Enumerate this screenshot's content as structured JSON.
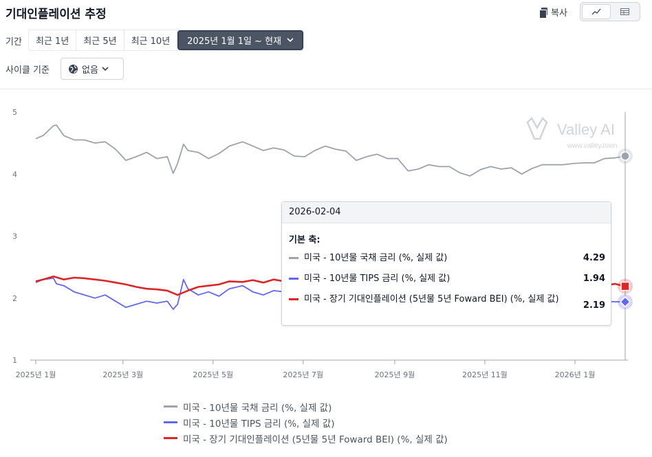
{
  "header": {
    "title": "기대인플레이션 추정",
    "copy_label": "복사"
  },
  "controls": {
    "period_label": "기간",
    "period_options": [
      "최근 1년",
      "최근 5년",
      "최근 10년"
    ],
    "period_selected": "2025년 1월 1일 ~ 현재",
    "cycle_label": "사이클 기준",
    "cycle_value": "없음"
  },
  "watermark": {
    "brand": "Valley AI",
    "url": "www.valley.town"
  },
  "tooltip": {
    "date": "2026-02-04",
    "axis_label": "기본 축:",
    "rows": [
      {
        "name": "미국 - 10년물 국채 금리 (%, 실제 값)",
        "value": "4.29"
      },
      {
        "name": "미국 - 10년물 TIPS 금리 (%, 실제 값)",
        "value": "1.94"
      },
      {
        "name": "미국 - 장기 기대인플레이션 (5년물 5년 Foward BEI) (%, 실제 값)",
        "value": "2.19"
      }
    ]
  },
  "chart_data": {
    "type": "line",
    "x_ticks": [
      "2025년 1월",
      "2025년 3월",
      "2025년 5월",
      "2025년 7월",
      "2025년 9월",
      "2025년 11월",
      "2026년 1월"
    ],
    "x_tick_dates": [
      "2025-01-01",
      "2025-03-01",
      "2025-05-01",
      "2025-07-01",
      "2025-09-01",
      "2025-11-01",
      "2026-01-01"
    ],
    "x_range": [
      "2025-01-01",
      "2026-02-04"
    ],
    "ylim": [
      1,
      5
    ],
    "y_ticks": [
      1,
      2,
      3,
      4,
      5
    ],
    "grid": false,
    "legend_position": "bottom",
    "hover_date": "2026-02-04",
    "series": [
      {
        "name": "미국 - 10년물 국채 금리 (%, 실제 값)",
        "color": "#9ca3af",
        "marker": "circle",
        "dates": [
          "2025-01-01",
          "2025-01-06",
          "2025-01-13",
          "2025-01-15",
          "2025-01-20",
          "2025-01-27",
          "2025-02-03",
          "2025-02-10",
          "2025-02-17",
          "2025-02-24",
          "2025-03-03",
          "2025-03-10",
          "2025-03-17",
          "2025-03-24",
          "2025-03-31",
          "2025-04-04",
          "2025-04-07",
          "2025-04-11",
          "2025-04-14",
          "2025-04-21",
          "2025-04-28",
          "2025-05-05",
          "2025-05-12",
          "2025-05-21",
          "2025-05-28",
          "2025-06-04",
          "2025-06-11",
          "2025-06-18",
          "2025-06-25",
          "2025-07-02",
          "2025-07-09",
          "2025-07-16",
          "2025-07-23",
          "2025-07-30",
          "2025-08-06",
          "2025-08-13",
          "2025-08-20",
          "2025-08-27",
          "2025-09-03",
          "2025-09-10",
          "2025-09-17",
          "2025-09-24",
          "2025-10-01",
          "2025-10-08",
          "2025-10-15",
          "2025-10-22",
          "2025-10-29",
          "2025-11-05",
          "2025-11-12",
          "2025-11-19",
          "2025-11-26",
          "2025-12-03",
          "2025-12-10",
          "2025-12-17",
          "2025-12-24",
          "2025-12-31",
          "2026-01-07",
          "2026-01-14",
          "2026-01-21",
          "2026-01-28",
          "2026-02-04"
        ],
        "values": [
          4.57,
          4.62,
          4.78,
          4.79,
          4.62,
          4.55,
          4.55,
          4.5,
          4.52,
          4.4,
          4.22,
          4.28,
          4.35,
          4.25,
          4.28,
          4.01,
          4.17,
          4.48,
          4.38,
          4.35,
          4.25,
          4.33,
          4.45,
          4.52,
          4.45,
          4.38,
          4.42,
          4.39,
          4.29,
          4.28,
          4.38,
          4.45,
          4.4,
          4.37,
          4.22,
          4.28,
          4.32,
          4.25,
          4.25,
          4.05,
          4.08,
          4.15,
          4.12,
          4.12,
          4.02,
          3.97,
          4.07,
          4.12,
          4.08,
          4.1,
          4.0,
          4.09,
          4.15,
          4.15,
          4.15,
          4.17,
          4.18,
          4.18,
          4.25,
          4.26,
          4.29
        ]
      },
      {
        "name": "미국 - 10년물 TIPS 금리 (%, 실제 값)",
        "color": "#6366f1",
        "marker": "diamond",
        "dates": [
          "2025-01-01",
          "2025-01-06",
          "2025-01-13",
          "2025-01-15",
          "2025-01-20",
          "2025-01-27",
          "2025-02-03",
          "2025-02-10",
          "2025-02-17",
          "2025-02-24",
          "2025-03-03",
          "2025-03-10",
          "2025-03-17",
          "2025-03-24",
          "2025-03-31",
          "2025-04-04",
          "2025-04-07",
          "2025-04-11",
          "2025-04-14",
          "2025-04-21",
          "2025-04-28",
          "2025-05-05",
          "2025-05-12",
          "2025-05-21",
          "2025-05-28",
          "2025-06-04",
          "2025-06-11",
          "2025-06-18",
          "2025-06-25",
          "2025-07-02",
          "2026-01-28",
          "2026-02-04"
        ],
        "values": [
          2.25,
          2.3,
          2.32,
          2.23,
          2.2,
          2.1,
          2.05,
          2.0,
          2.05,
          1.95,
          1.85,
          1.9,
          1.95,
          1.92,
          1.95,
          1.82,
          1.9,
          2.3,
          2.15,
          2.05,
          2.1,
          2.03,
          2.15,
          2.2,
          2.1,
          2.05,
          2.12,
          2.1,
          2.05,
          2.12,
          1.94,
          1.94
        ]
      },
      {
        "name": "미국 - 장기 기대인플레이션 (5년물 5년 Foward BEI) (%, 실제 값)",
        "color": "#dc2626",
        "marker": "square",
        "dates": [
          "2025-01-01",
          "2025-01-06",
          "2025-01-13",
          "2025-01-20",
          "2025-01-27",
          "2025-02-03",
          "2025-02-10",
          "2025-02-17",
          "2025-02-24",
          "2025-03-03",
          "2025-03-10",
          "2025-03-17",
          "2025-03-24",
          "2025-03-31",
          "2025-04-07",
          "2025-04-14",
          "2025-04-21",
          "2025-04-28",
          "2025-05-05",
          "2025-05-12",
          "2025-05-21",
          "2025-05-28",
          "2025-06-04",
          "2025-06-11",
          "2025-06-18",
          "2025-06-25",
          "2025-07-02",
          "2026-01-21",
          "2026-01-28",
          "2026-02-04"
        ],
        "values": [
          2.27,
          2.3,
          2.35,
          2.3,
          2.33,
          2.32,
          2.3,
          2.28,
          2.25,
          2.22,
          2.18,
          2.15,
          2.14,
          2.12,
          2.05,
          2.12,
          2.18,
          2.2,
          2.22,
          2.27,
          2.26,
          2.29,
          2.25,
          2.3,
          2.27,
          2.29,
          2.28,
          2.2,
          2.23,
          2.19
        ]
      }
    ]
  }
}
